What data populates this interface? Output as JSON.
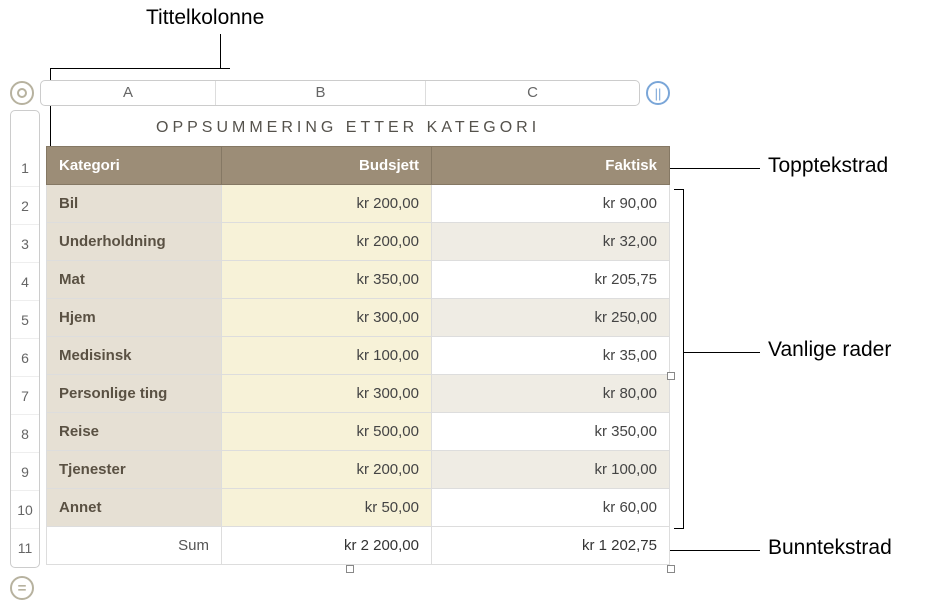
{
  "callouts": {
    "title_column": "Tittelkolonne",
    "header_row": "Topptekstrad",
    "body_rows": "Vanlige rader",
    "footer_row": "Bunntekstrad"
  },
  "ui": {
    "pause_glyph": "||",
    "equals_glyph": "="
  },
  "table": {
    "title": "OPPSUMMERING ETTER KATEGORI",
    "column_letters": [
      "A",
      "B",
      "C"
    ],
    "row_numbers": [
      "1",
      "2",
      "3",
      "4",
      "5",
      "6",
      "7",
      "8",
      "9",
      "10",
      "11"
    ],
    "headers": {
      "category": "Kategori",
      "budget": "Budsjett",
      "actual": "Faktisk"
    },
    "rows": [
      {
        "category": "Bil",
        "budget": "kr 200,00",
        "actual": "kr 90,00",
        "striped": false
      },
      {
        "category": "Underholdning",
        "budget": "kr 200,00",
        "actual": "kr 32,00",
        "striped": true
      },
      {
        "category": "Mat",
        "budget": "kr 350,00",
        "actual": "kr 205,75",
        "striped": false
      },
      {
        "category": "Hjem",
        "budget": "kr 300,00",
        "actual": "kr 250,00",
        "striped": true
      },
      {
        "category": "Medisinsk",
        "budget": "kr 100,00",
        "actual": "kr 35,00",
        "striped": false
      },
      {
        "category": "Personlige ting",
        "budget": "kr 300,00",
        "actual": "kr 80,00",
        "striped": true
      },
      {
        "category": "Reise",
        "budget": "kr 500,00",
        "actual": "kr 350,00",
        "striped": false
      },
      {
        "category": "Tjenester",
        "budget": "kr 200,00",
        "actual": "kr 100,00",
        "striped": true
      },
      {
        "category": "Annet",
        "budget": "kr 50,00",
        "actual": "kr 60,00",
        "striped": false
      }
    ],
    "footer": {
      "label": "Sum",
      "budget": "kr 2 200,00",
      "actual": "kr 1 202,75"
    },
    "colors": {
      "header_bg": "#9c8d77",
      "header_fg": "#ffffff",
      "cat_bg": "#e6e0d4",
      "cat_fg": "#5a5143",
      "budget_bg": "#f7f2d8",
      "actual_bg_plain": "#ffffff",
      "actual_bg_striped": "#efece4",
      "border": "#dddddd"
    }
  }
}
